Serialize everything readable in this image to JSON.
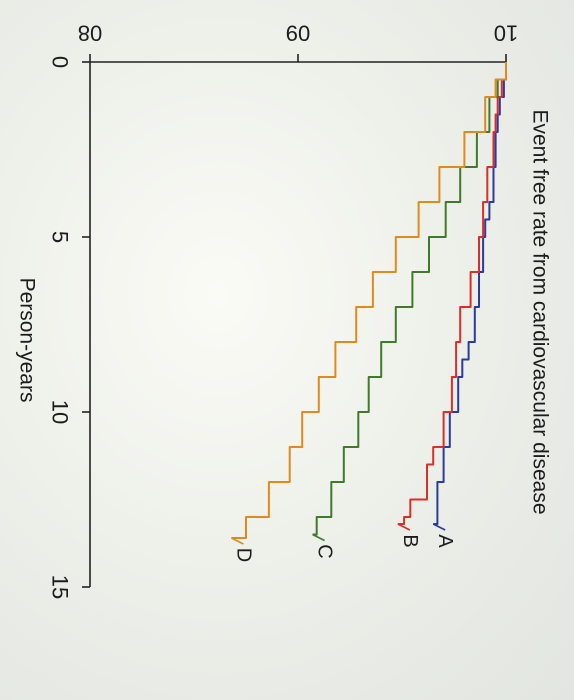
{
  "chart_data": {
    "type": "line",
    "title": "",
    "xlabel": "Person-years",
    "ylabel": "Event free rate from cardiovascular disease",
    "xlim": [
      0,
      15
    ],
    "ylim": [
      0.8,
      1.0
    ],
    "x_ticks": [
      0,
      5,
      10,
      15
    ],
    "y_ticks": [
      0.8,
      0.9,
      1.0
    ],
    "x_tick_labels": [
      "0",
      "5",
      "10",
      "15"
    ],
    "y_tick_labels": [
      "08",
      "09",
      "10"
    ],
    "grid": false,
    "series": [
      {
        "name": "A",
        "color": "#2b3a9e",
        "x": [
          0,
          0.5,
          1,
          1.5,
          2,
          3,
          4,
          4.5,
          5,
          6,
          7,
          8,
          8.5,
          9,
          10,
          11,
          12,
          13.2
        ],
        "y": [
          1.0,
          0.999,
          0.997,
          0.996,
          0.995,
          0.994,
          0.992,
          0.99,
          0.989,
          0.987,
          0.985,
          0.982,
          0.979,
          0.977,
          0.973,
          0.97,
          0.967,
          0.965
        ]
      },
      {
        "name": "B",
        "color": "#d82f2a",
        "x": [
          0,
          0.5,
          1,
          1.5,
          2,
          3,
          4,
          5,
          6,
          7,
          8,
          9,
          10,
          11,
          11.5,
          12.5,
          13,
          13.2
        ],
        "y": [
          1.0,
          0.998,
          0.996,
          0.995,
          0.994,
          0.991,
          0.989,
          0.987,
          0.983,
          0.978,
          0.976,
          0.974,
          0.97,
          0.965,
          0.962,
          0.954,
          0.951,
          0.948
        ]
      },
      {
        "name": "C",
        "color": "#3f7a2a",
        "x": [
          0,
          0.5,
          1,
          2,
          3,
          4,
          5,
          6,
          7,
          8,
          9,
          10,
          11,
          12,
          13,
          13.5
        ],
        "y": [
          1.0,
          0.996,
          0.992,
          0.986,
          0.978,
          0.971,
          0.963,
          0.955,
          0.947,
          0.94,
          0.934,
          0.929,
          0.922,
          0.916,
          0.909,
          0.907
        ]
      },
      {
        "name": "D",
        "color": "#e08a1e",
        "x": [
          0,
          0.5,
          1,
          2,
          3,
          4,
          5,
          6,
          7,
          8,
          9,
          10,
          11,
          12,
          13,
          13.6
        ],
        "y": [
          1.0,
          0.995,
          0.99,
          0.98,
          0.968,
          0.958,
          0.947,
          0.936,
          0.928,
          0.918,
          0.91,
          0.902,
          0.896,
          0.886,
          0.875,
          0.868
        ]
      }
    ]
  }
}
